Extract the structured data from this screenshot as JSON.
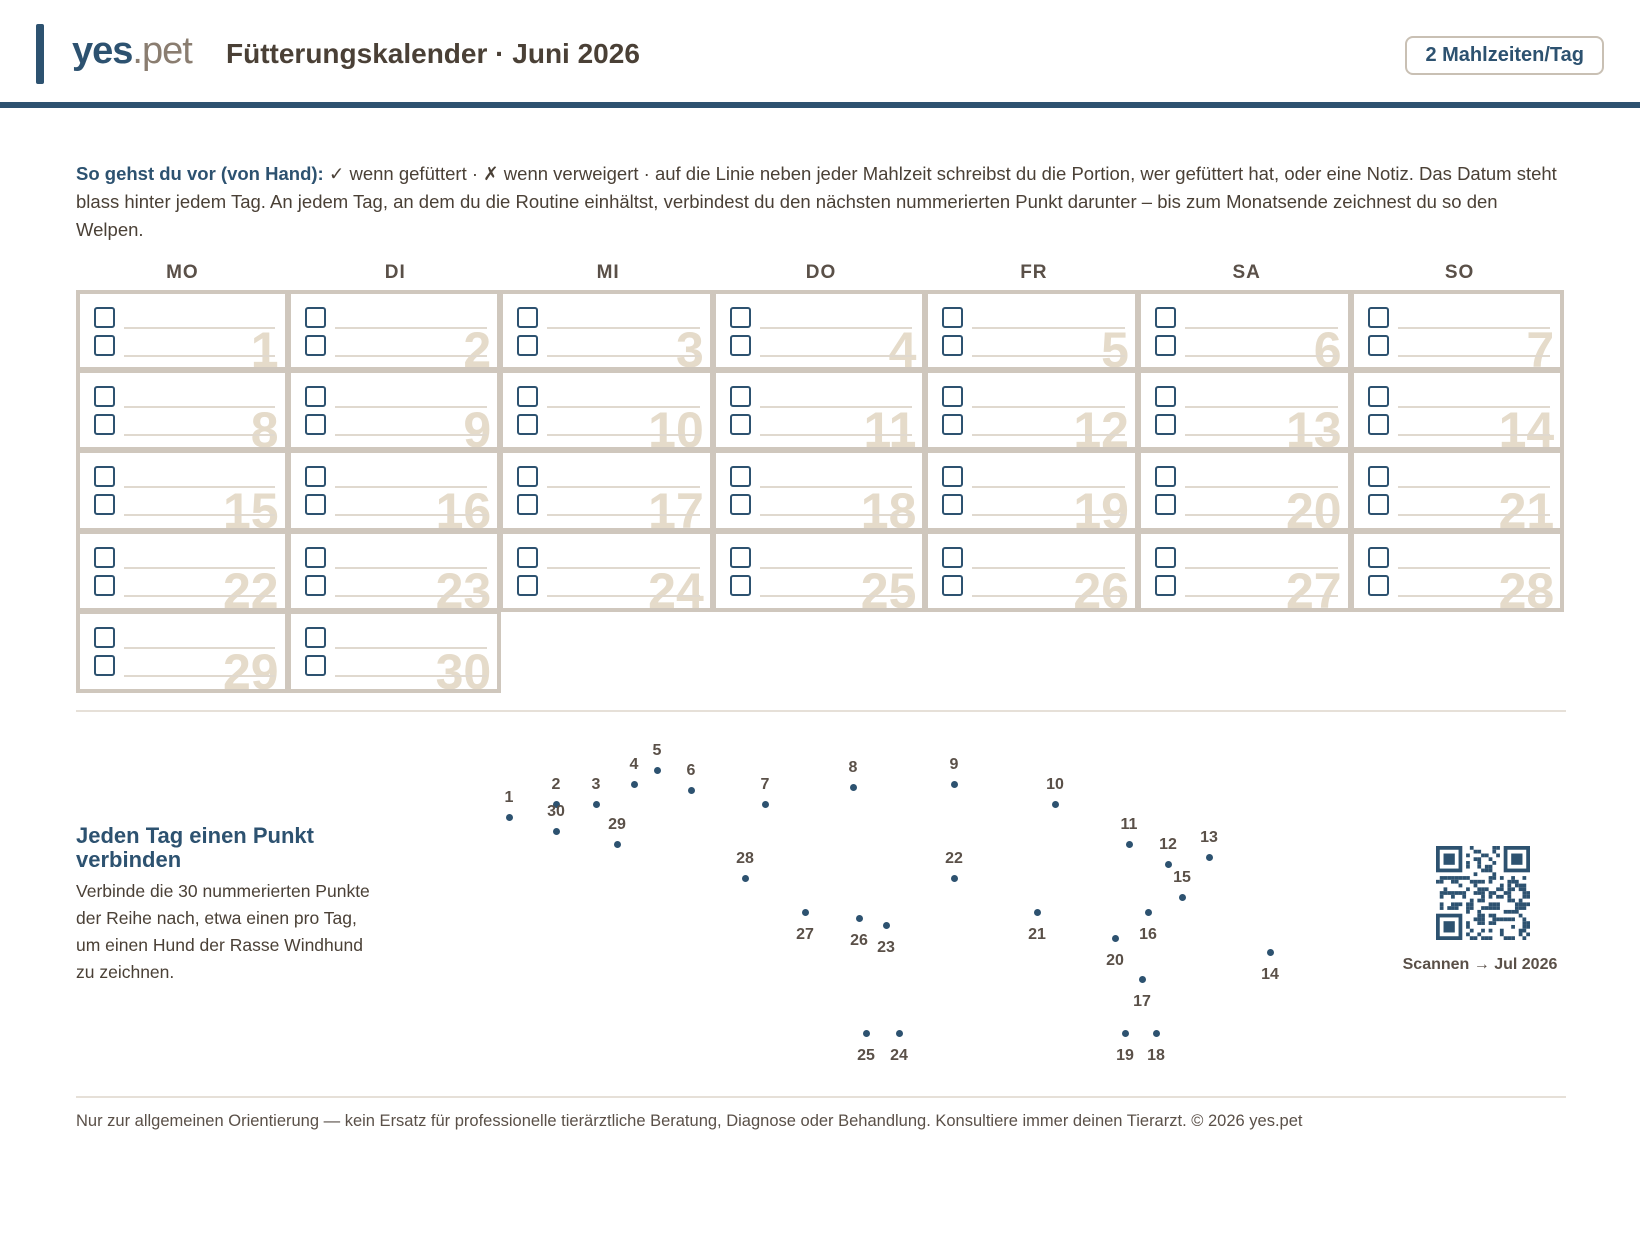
{
  "header": {
    "logo_part1": "yes",
    "logo_part2": ".pet",
    "title": "Fütterungskalender · Juni 2026",
    "badge": "2 Mahlzeiten/Tag"
  },
  "intro": {
    "bold": "So gehst du vor (von Hand):",
    "text": " ✓ wenn gefüttert · ✗ wenn verweigert · auf die Linie neben jeder Mahlzeit schreibst du die Portion, wer gefüttert hat, oder eine Notiz. Das Datum steht blass hinter jedem Tag. An jedem Tag, an dem du die Routine einhältst, verbindest du den nächsten nummerierten Punkt darunter – bis zum Monatsende zeichnest du so den Welpen."
  },
  "calendar": {
    "weekdays": [
      "MO",
      "DI",
      "MI",
      "DO",
      "FR",
      "SA",
      "SO"
    ],
    "days": [
      "1",
      "2",
      "3",
      "4",
      "5",
      "6",
      "7",
      "8",
      "9",
      "10",
      "11",
      "12",
      "13",
      "14",
      "15",
      "16",
      "17",
      "18",
      "19",
      "20",
      "21",
      "22",
      "23",
      "24",
      "25",
      "26",
      "27",
      "28",
      "29",
      "30"
    ],
    "meals_per_day": 2,
    "first_weekday_index": 0
  },
  "dot_section": {
    "title": "Jeden Tag einen Punkt verbinden",
    "text": "Verbinde die 30 nummerierten Punkte der Reihe nach, etwa einen pro Tag, um einen Hund der Rasse Windhund zu zeichnen.",
    "dot_labels": [
      "1",
      "2",
      "3",
      "4",
      "5",
      "6",
      "7",
      "8",
      "9",
      "10",
      "11",
      "12",
      "13",
      "14",
      "15",
      "16",
      "17",
      "18",
      "19",
      "20",
      "21",
      "22",
      "23",
      "24",
      "25",
      "26",
      "27",
      "28",
      "29",
      "30"
    ]
  },
  "qr": {
    "caption": "Scannen → Jul 2026"
  },
  "footer": {
    "text": "Nur zur allgemeinen Orientierung — kein Ersatz für professionelle tierärztliche Beratung, Diagnose oder Behandlung. Konsultiere immer deinen Tierarzt. © 2026 yes.pet"
  },
  "colors": {
    "accent": "#2d5270",
    "grid": "#cfc7bd",
    "date_watermark": "#e5dbca"
  }
}
